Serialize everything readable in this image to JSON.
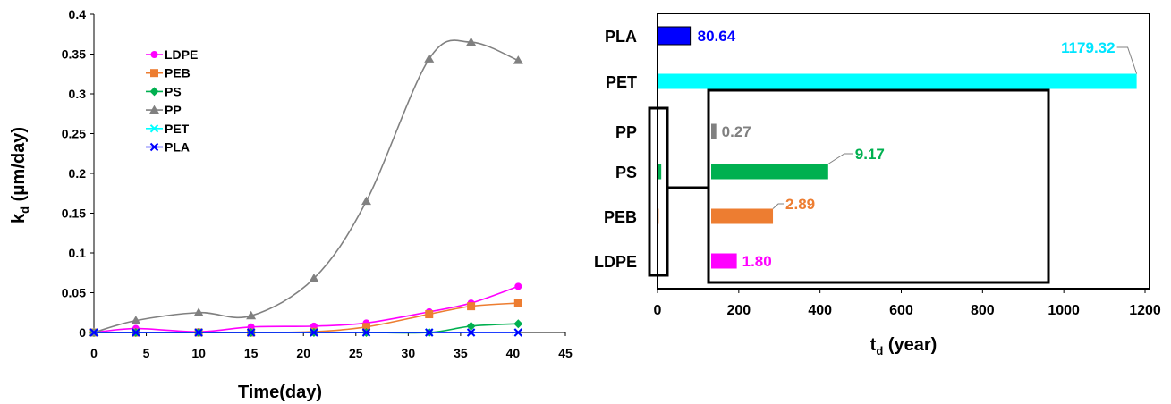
{
  "chart_data": [
    {
      "type": "line",
      "title": "",
      "xlabel": "Time(day)",
      "ylabel": "k",
      "ylabel_sub": "d",
      "ylabel_unit": " (μm/day)",
      "xlim": [
        0,
        45
      ],
      "ylim": [
        0,
        0.4
      ],
      "xticks": [
        0,
        5,
        10,
        15,
        20,
        25,
        30,
        35,
        40,
        45
      ],
      "yticks": [
        0,
        0.05,
        0.1,
        0.15,
        0.2,
        0.25,
        0.3,
        0.35,
        0.4
      ],
      "ytick_labels": [
        "0",
        "0.05",
        "0.1",
        "0.15",
        "0.2",
        "0.25",
        "0.3",
        "0.35",
        "0.4"
      ],
      "grid": false,
      "legend": "top-left",
      "x": [
        0,
        4,
        10,
        15,
        21,
        26,
        32,
        36,
        40.5
      ],
      "series": [
        {
          "name": "LDPE",
          "color": "#ff00ff",
          "marker": "circle",
          "values": [
            0,
            0.005,
            0.001,
            0.007,
            0.008,
            0.012,
            0.026,
            0.037,
            0.058
          ]
        },
        {
          "name": "PEB",
          "color": "#ed7d31",
          "marker": "square",
          "values": [
            0,
            0.0,
            0.0,
            0.0,
            0.001,
            0.007,
            0.023,
            0.033,
            0.037
          ]
        },
        {
          "name": "PS",
          "color": "#00b050",
          "marker": "diamond",
          "values": [
            0,
            0,
            0,
            0,
            0,
            0,
            0.0,
            0.008,
            0.011
          ]
        },
        {
          "name": "PP",
          "color": "#808080",
          "marker": "triangle",
          "values": [
            0,
            0.015,
            0.025,
            0.021,
            0.068,
            0.165,
            0.344,
            0.365,
            0.342
          ]
        },
        {
          "name": "PET",
          "color": "#00ffff",
          "marker": "x",
          "values": [
            0,
            0,
            0,
            0,
            0,
            0,
            0,
            0,
            0
          ]
        },
        {
          "name": "PLA",
          "color": "#0000ff",
          "marker": "x",
          "values": [
            0,
            0,
            0,
            0,
            0,
            0,
            0,
            0,
            0
          ]
        }
      ]
    },
    {
      "type": "bar",
      "orientation": "horizontal",
      "title": "",
      "xlabel": "t",
      "xlabel_sub": "d",
      "xlabel_unit": " (year)",
      "xlim": [
        0,
        1200
      ],
      "xticks": [
        0,
        200,
        400,
        600,
        800,
        1000,
        1200
      ],
      "grid": false,
      "categories": [
        "PLA",
        "PET",
        "PP",
        "PS",
        "PEB",
        "LDPE"
      ],
      "values": [
        80.64,
        1179.32,
        0.27,
        9.17,
        2.89,
        1.8
      ],
      "value_labels": [
        "80.64",
        "1179.32",
        "0.27",
        "9.17",
        "2.89",
        "1.80"
      ],
      "inset_zoom_values": [
        null,
        null,
        12.5,
        288,
        152,
        63
      ],
      "colors": [
        "#0000ff",
        "#00ffff",
        "#808080",
        "#00b050",
        "#ed7d31",
        "#ff00ff"
      ],
      "label_colors": [
        "#0000ff",
        "#00e5ff",
        "#808080",
        "#00b050",
        "#ed7d31",
        "#ff00ff"
      ]
    }
  ]
}
